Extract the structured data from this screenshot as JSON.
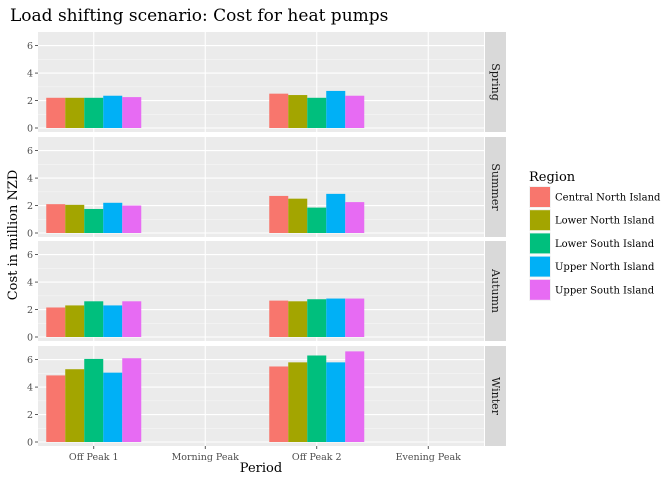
{
  "chart_data": {
    "type": "bar",
    "title": "Load shifting scenario: Cost for heat pumps",
    "xlabel": "Period",
    "ylabel": "Cost in million NZD",
    "categories": [
      "Off Peak 1",
      "Morning Peak",
      "Off Peak 2",
      "Evening Peak"
    ],
    "ylim": [
      0,
      6.7
    ],
    "yticks": [
      0,
      2,
      4,
      6
    ],
    "grid": true,
    "legend": {
      "title": "Region",
      "position": "right",
      "entries": [
        "Central North Island",
        "Lower North Island",
        "Lower South Island",
        "Upper North Island",
        "Upper South Island"
      ]
    },
    "colors": [
      "#F8766D",
      "#A3A500",
      "#00BF7D",
      "#00B0F6",
      "#E76BF3"
    ],
    "facets": [
      {
        "label": "Spring",
        "series": [
          {
            "name": "Central North Island",
            "values": [
              2.2,
              null,
              2.5,
              null
            ]
          },
          {
            "name": "Lower North Island",
            "values": [
              2.2,
              null,
              2.4,
              null
            ]
          },
          {
            "name": "Lower South Island",
            "values": [
              2.2,
              null,
              2.2,
              null
            ]
          },
          {
            "name": "Upper North Island",
            "values": [
              2.35,
              null,
              2.7,
              null
            ]
          },
          {
            "name": "Upper South Island",
            "values": [
              2.25,
              null,
              2.35,
              null
            ]
          }
        ]
      },
      {
        "label": "Summer",
        "series": [
          {
            "name": "Central North Island",
            "values": [
              2.1,
              null,
              2.7,
              null
            ]
          },
          {
            "name": "Lower North Island",
            "values": [
              2.05,
              null,
              2.5,
              null
            ]
          },
          {
            "name": "Lower South Island",
            "values": [
              1.75,
              null,
              1.85,
              null
            ]
          },
          {
            "name": "Upper North Island",
            "values": [
              2.2,
              null,
              2.85,
              null
            ]
          },
          {
            "name": "Upper South Island",
            "values": [
              2.0,
              null,
              2.25,
              null
            ]
          }
        ]
      },
      {
        "label": "Autumn",
        "series": [
          {
            "name": "Central North Island",
            "values": [
              2.15,
              null,
              2.65,
              null
            ]
          },
          {
            "name": "Lower North Island",
            "values": [
              2.3,
              null,
              2.6,
              null
            ]
          },
          {
            "name": "Lower South Island",
            "values": [
              2.6,
              null,
              2.75,
              null
            ]
          },
          {
            "name": "Upper North Island",
            "values": [
              2.3,
              null,
              2.8,
              null
            ]
          },
          {
            "name": "Upper South Island",
            "values": [
              2.6,
              null,
              2.8,
              null
            ]
          }
        ]
      },
      {
        "label": "Winter",
        "series": [
          {
            "name": "Central North Island",
            "values": [
              4.85,
              null,
              5.5,
              null
            ]
          },
          {
            "name": "Lower North Island",
            "values": [
              5.3,
              null,
              5.8,
              null
            ]
          },
          {
            "name": "Lower South Island",
            "values": [
              6.05,
              null,
              6.3,
              null
            ]
          },
          {
            "name": "Upper North Island",
            "values": [
              5.05,
              null,
              5.8,
              null
            ]
          },
          {
            "name": "Upper South Island",
            "values": [
              6.1,
              null,
              6.6,
              null
            ]
          }
        ]
      }
    ]
  }
}
